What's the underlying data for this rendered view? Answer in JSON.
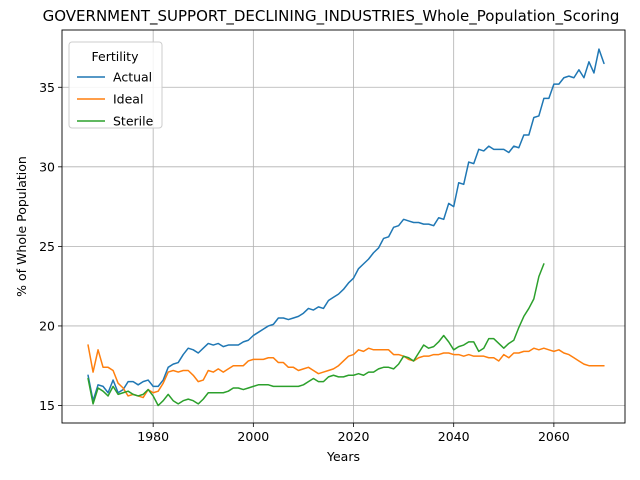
{
  "chart_data": {
    "type": "line",
    "title": "GOVERNMENT_SUPPORT_DECLINING_INDUSTRIES_Whole_Population_Scoring",
    "xlabel": "Years",
    "ylabel": "% of Whole Population",
    "xlim": [
      1961.8,
      2074.2
    ],
    "ylim": [
      13.9,
      38.6
    ],
    "x_ticks": [
      1980,
      2000,
      2020,
      2040,
      2060
    ],
    "y_ticks": [
      15,
      20,
      25,
      30,
      35
    ],
    "grid": true,
    "legend": {
      "title": "Fertility",
      "position": "top-left"
    },
    "series": [
      {
        "name": "Actual",
        "color": "#1f77b4",
        "x": [
          1967,
          1968,
          1969,
          1970,
          1971,
          1972,
          1973,
          1974,
          1975,
          1976,
          1977,
          1978,
          1979,
          1980,
          1981,
          1982,
          1983,
          1984,
          1985,
          1986,
          1987,
          1988,
          1989,
          1990,
          1991,
          1992,
          1993,
          1994,
          1995,
          1996,
          1997,
          1998,
          1999,
          2000,
          2001,
          2002,
          2003,
          2004,
          2005,
          2006,
          2007,
          2008,
          2009,
          2010,
          2011,
          2012,
          2013,
          2014,
          2015,
          2016,
          2017,
          2018,
          2019,
          2020,
          2021,
          2022,
          2023,
          2024,
          2025,
          2026,
          2027,
          2028,
          2029,
          2030,
          2031,
          2032,
          2033,
          2034,
          2035,
          2036,
          2037,
          2038,
          2039,
          2040,
          2041,
          2042,
          2043,
          2044,
          2045,
          2046,
          2047,
          2048,
          2049,
          2050,
          2051,
          2052,
          2053,
          2054,
          2055,
          2056,
          2057,
          2058,
          2059,
          2060,
          2061,
          2062,
          2063,
          2064,
          2065,
          2066,
          2067,
          2068,
          2069,
          2070
        ],
        "y": [
          16.9,
          15.3,
          16.3,
          16.2,
          15.8,
          16.6,
          15.8,
          16.0,
          16.5,
          16.5,
          16.3,
          16.5,
          16.6,
          16.2,
          16.2,
          16.6,
          17.4,
          17.6,
          17.7,
          18.2,
          18.6,
          18.5,
          18.3,
          18.6,
          18.9,
          18.8,
          18.9,
          18.7,
          18.8,
          18.8,
          18.8,
          19.0,
          19.1,
          19.4,
          19.6,
          19.8,
          20.0,
          20.1,
          20.5,
          20.5,
          20.4,
          20.5,
          20.6,
          20.8,
          21.1,
          21.0,
          21.2,
          21.1,
          21.6,
          21.8,
          22.0,
          22.3,
          22.7,
          23.0,
          23.6,
          23.9,
          24.2,
          24.6,
          24.9,
          25.5,
          25.6,
          26.2,
          26.3,
          26.7,
          26.6,
          26.5,
          26.5,
          26.4,
          26.4,
          26.3,
          26.8,
          26.7,
          27.7,
          27.5,
          29.0,
          28.9,
          30.3,
          30.2,
          31.1,
          31.0,
          31.3,
          31.1,
          31.1,
          31.1,
          30.9,
          31.3,
          31.2,
          32.0,
          32.0,
          33.1,
          33.2,
          34.3,
          34.3,
          35.2,
          35.2,
          35.6,
          35.7,
          35.6,
          36.1,
          35.6,
          36.6,
          35.9,
          37.4,
          36.5
        ]
      },
      {
        "name": "Ideal",
        "color": "#ff7f0e",
        "x": [
          1967,
          1968,
          1969,
          1970,
          1971,
          1972,
          1973,
          1974,
          1975,
          1976,
          1977,
          1978,
          1979,
          1980,
          1981,
          1982,
          1983,
          1984,
          1985,
          1986,
          1987,
          1988,
          1989,
          1990,
          1991,
          1992,
          1993,
          1994,
          1995,
          1996,
          1997,
          1998,
          1999,
          2000,
          2001,
          2002,
          2003,
          2004,
          2005,
          2006,
          2007,
          2008,
          2009,
          2010,
          2011,
          2012,
          2013,
          2014,
          2015,
          2016,
          2017,
          2018,
          2019,
          2020,
          2021,
          2022,
          2023,
          2024,
          2025,
          2026,
          2027,
          2028,
          2029,
          2030,
          2031,
          2032,
          2033,
          2034,
          2035,
          2036,
          2037,
          2038,
          2039,
          2040,
          2041,
          2042,
          2043,
          2044,
          2045,
          2046,
          2047,
          2048,
          2049,
          2050,
          2051,
          2052,
          2053,
          2054,
          2055,
          2056,
          2057,
          2058,
          2059,
          2060,
          2061,
          2062,
          2063,
          2064,
          2065,
          2066,
          2067,
          2068,
          2069,
          2070
        ],
        "y": [
          18.8,
          17.1,
          18.5,
          17.4,
          17.4,
          17.2,
          16.4,
          16.1,
          15.6,
          15.7,
          15.6,
          15.5,
          16.0,
          15.8,
          15.9,
          16.4,
          17.1,
          17.2,
          17.1,
          17.2,
          17.2,
          16.9,
          16.5,
          16.6,
          17.2,
          17.1,
          17.3,
          17.1,
          17.3,
          17.5,
          17.5,
          17.5,
          17.8,
          17.9,
          17.9,
          17.9,
          18.0,
          18.0,
          17.7,
          17.7,
          17.4,
          17.4,
          17.2,
          17.3,
          17.4,
          17.2,
          17.0,
          17.1,
          17.2,
          17.3,
          17.5,
          17.8,
          18.1,
          18.2,
          18.5,
          18.4,
          18.6,
          18.5,
          18.5,
          18.5,
          18.5,
          18.2,
          18.2,
          18.1,
          17.9,
          17.8,
          18.0,
          18.1,
          18.1,
          18.2,
          18.2,
          18.3,
          18.3,
          18.2,
          18.2,
          18.1,
          18.2,
          18.1,
          18.1,
          18.1,
          18.0,
          18.0,
          17.8,
          18.2,
          18.0,
          18.3,
          18.3,
          18.4,
          18.4,
          18.6,
          18.5,
          18.6,
          18.5,
          18.4,
          18.5,
          18.3,
          18.2,
          18.0,
          17.8,
          17.6,
          17.5,
          17.5,
          17.5,
          17.5
        ]
      },
      {
        "name": "Sterile",
        "color": "#2ca02c",
        "x": [
          1967,
          1968,
          1969,
          1970,
          1971,
          1972,
          1973,
          1974,
          1975,
          1976,
          1977,
          1978,
          1979,
          1980,
          1981,
          1982,
          1983,
          1984,
          1985,
          1986,
          1987,
          1988,
          1989,
          1990,
          1991,
          1992,
          1993,
          1994,
          1995,
          1996,
          1997,
          1998,
          1999,
          2000,
          2001,
          2002,
          2003,
          2004,
          2005,
          2006,
          2007,
          2008,
          2009,
          2010,
          2011,
          2012,
          2013,
          2014,
          2015,
          2016,
          2017,
          2018,
          2019,
          2020,
          2021,
          2022,
          2023,
          2024,
          2025,
          2026,
          2027,
          2028,
          2029,
          2030,
          2031,
          2032,
          2033,
          2034,
          2035,
          2036,
          2037,
          2038,
          2039,
          2040,
          2041,
          2042,
          2043,
          2044,
          2045,
          2046,
          2047,
          2048,
          2049,
          2050,
          2051,
          2052,
          2053,
          2054,
          2055,
          2056,
          2057,
          2058
        ],
        "y": [
          16.7,
          15.1,
          16.1,
          15.9,
          15.6,
          16.2,
          15.7,
          15.8,
          15.9,
          15.7,
          15.6,
          15.7,
          16.0,
          15.6,
          15.0,
          15.3,
          15.7,
          15.3,
          15.1,
          15.3,
          15.4,
          15.3,
          15.1,
          15.4,
          15.8,
          15.8,
          15.8,
          15.8,
          15.9,
          16.1,
          16.1,
          16.0,
          16.1,
          16.2,
          16.3,
          16.3,
          16.3,
          16.2,
          16.2,
          16.2,
          16.2,
          16.2,
          16.2,
          16.3,
          16.5,
          16.7,
          16.5,
          16.5,
          16.8,
          16.9,
          16.8,
          16.8,
          16.9,
          16.9,
          17.0,
          16.9,
          17.1,
          17.1,
          17.3,
          17.4,
          17.4,
          17.3,
          17.6,
          18.1,
          18.0,
          17.8,
          18.3,
          18.8,
          18.6,
          18.7,
          19.0,
          19.4,
          19.0,
          18.5,
          18.7,
          18.8,
          19.0,
          19.0,
          18.4,
          18.6,
          19.2,
          19.2,
          18.9,
          18.6,
          18.9,
          19.1,
          19.9,
          20.6,
          21.1,
          21.7,
          23.1,
          23.9
        ]
      }
    ]
  }
}
